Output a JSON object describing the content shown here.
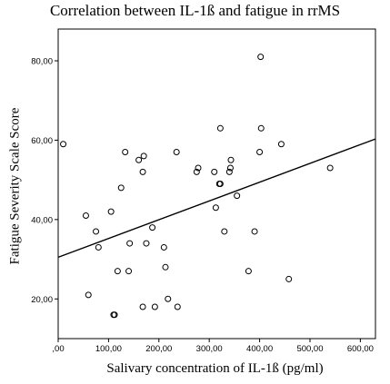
{
  "chart_data": {
    "type": "scatter",
    "title": "Correlation between IL-1ß and fatigue in rrMS",
    "xlabel": "Salivary concentration of IL-1ß (pg/ml)",
    "ylabel": "Fatigue Severity Scale Score",
    "xlim": [
      0,
      630
    ],
    "ylim": [
      10,
      88
    ],
    "x_ticks": [
      0,
      100,
      200,
      300,
      400,
      500,
      600
    ],
    "x_tick_labels": [
      ",00",
      "100,00",
      "200,00",
      "300,00",
      "400,00",
      "500,00",
      "600,00"
    ],
    "y_ticks": [
      20,
      40,
      60,
      80
    ],
    "y_tick_labels": [
      "20,00",
      "40,00",
      "60,00",
      "80,00"
    ],
    "grid": false,
    "legend": "none",
    "point_style": "open-circle",
    "series": [
      {
        "points": [
          [
            10,
            59
          ],
          [
            55,
            41
          ],
          [
            60,
            21
          ],
          [
            75,
            37
          ],
          [
            80,
            33
          ],
          [
            105,
            42
          ],
          [
            110,
            16
          ],
          [
            112,
            16
          ],
          [
            118,
            27
          ],
          [
            125,
            48
          ],
          [
            133,
            57
          ],
          [
            140,
            27
          ],
          [
            142,
            34
          ],
          [
            160,
            55
          ],
          [
            168,
            52
          ],
          [
            170,
            56
          ],
          [
            168,
            18
          ],
          [
            175,
            34
          ],
          [
            187,
            38
          ],
          [
            192,
            18
          ],
          [
            210,
            33
          ],
          [
            213,
            28
          ],
          [
            218,
            20
          ],
          [
            235,
            57
          ],
          [
            237,
            18
          ],
          [
            275,
            52
          ],
          [
            278,
            53
          ],
          [
            310,
            52
          ],
          [
            313,
            43
          ],
          [
            320,
            49
          ],
          [
            322,
            49
          ],
          [
            322,
            63
          ],
          [
            330,
            37
          ],
          [
            340,
            52
          ],
          [
            342,
            53
          ],
          [
            343,
            55
          ],
          [
            355,
            46
          ],
          [
            378,
            27
          ],
          [
            390,
            37
          ],
          [
            400,
            57
          ],
          [
            402,
            81
          ],
          [
            403,
            63
          ],
          [
            443,
            59
          ],
          [
            458,
            25
          ],
          [
            540,
            53
          ]
        ]
      }
    ],
    "fit_line": {
      "x": [
        0,
        630
      ],
      "y": [
        30.5,
        60.3
      ]
    }
  }
}
